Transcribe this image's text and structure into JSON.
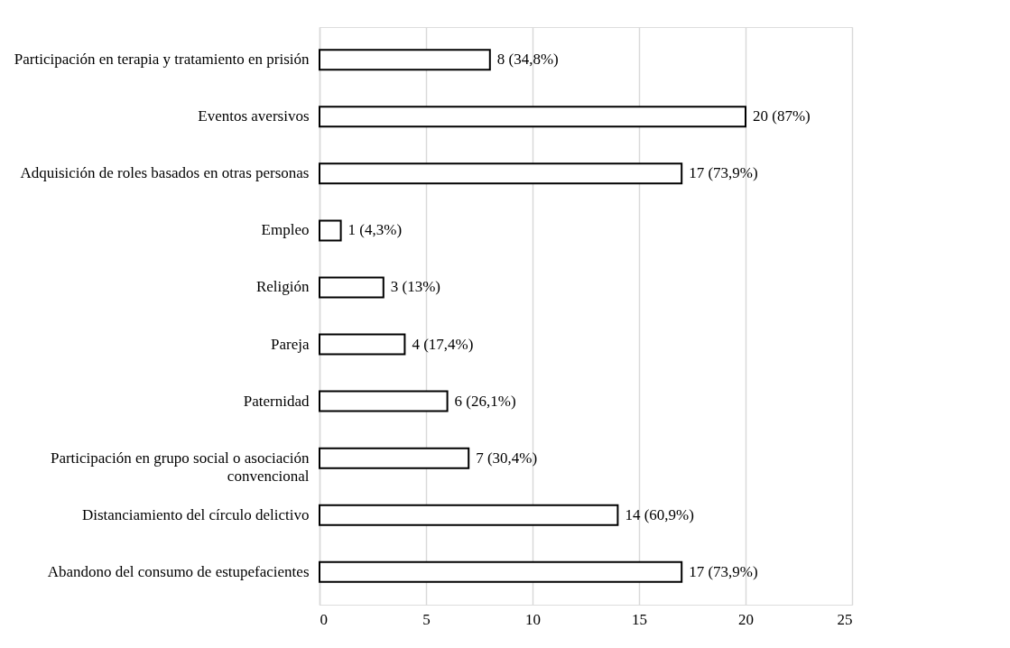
{
  "chart_data": {
    "type": "bar",
    "orientation": "horizontal",
    "categories": [
      "Participación en terapia y tratamiento en prisión",
      "Eventos aversivos",
      "Adquisición de roles basados en otras personas",
      "Empleo",
      "Religión",
      "Pareja",
      "Paternidad",
      "Participación en grupo social o asociación convencional",
      "Distanciamiento del círculo delictivo",
      "Abandono del consumo de estupefacientes"
    ],
    "values": [
      8,
      20,
      17,
      1,
      3,
      4,
      6,
      7,
      14,
      17
    ],
    "value_labels": [
      "8 (34,8%)",
      "20 (87%)",
      "17 (73,9%)",
      "1 (4,3%)",
      "3 (13%)",
      "4 (17,4%)",
      "6 (26,1%)",
      "7 (30,4%)",
      "14 (60,9%)",
      "17 (73,9%)"
    ],
    "color": "#ffffff",
    "xlim": [
      0,
      25
    ],
    "xticks": [
      0,
      5,
      10,
      15,
      20,
      25
    ],
    "grid": "x"
  }
}
